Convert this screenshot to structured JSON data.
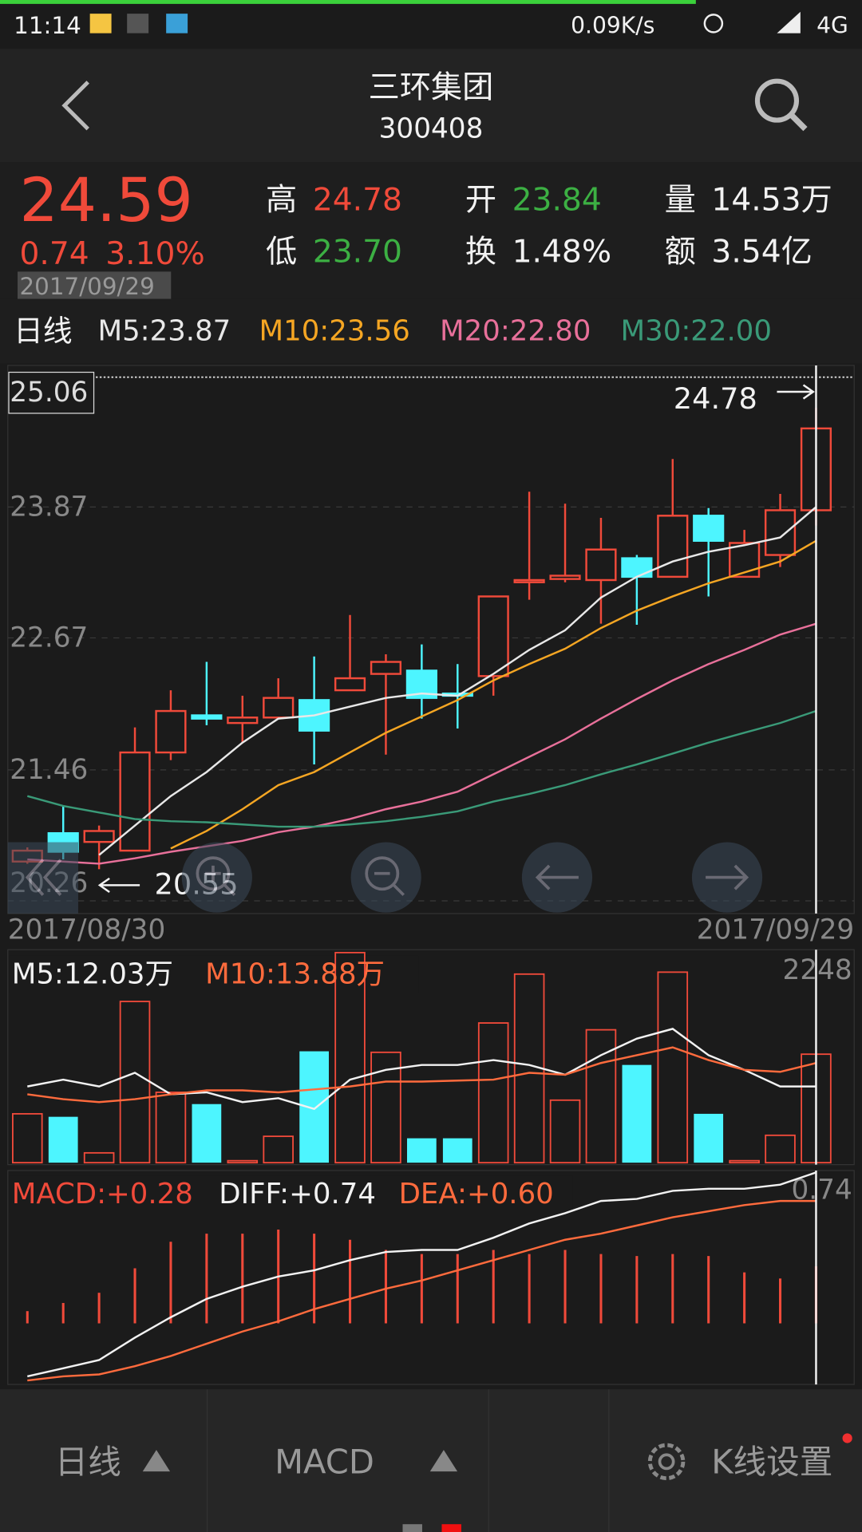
{
  "status_bar": {
    "time": "11:14",
    "speed": "0.09K/s",
    "network": "4G"
  },
  "header": {
    "title": "三环集团",
    "code": "300408"
  },
  "quote": {
    "price": "24.59",
    "change": "0.74",
    "change_pct": "3.10%",
    "date": "2017/09/29",
    "stats": [
      {
        "label": "高",
        "value": "24.78",
        "color": "#f04a3a"
      },
      {
        "label": "开",
        "value": "23.84",
        "color": "#3cb043"
      },
      {
        "label": "量",
        "value": "14.53万",
        "color": "#f2f2f2"
      },
      {
        "label": "低",
        "value": "23.70",
        "color": "#3cb043"
      },
      {
        "label": "换",
        "value": "1.48%",
        "color": "#f2f2f2"
      },
      {
        "label": "额",
        "value": "3.54亿",
        "color": "#f2f2f2"
      }
    ]
  },
  "chart_data": [
    {
      "type": "candlestick",
      "period": "日线",
      "categories": [
        "2017/08/30",
        null,
        null,
        null,
        null,
        null,
        null,
        null,
        null,
        null,
        null,
        null,
        null,
        null,
        null,
        null,
        null,
        null,
        null,
        null,
        null,
        null,
        "2017/09/29"
      ],
      "open": [
        20.62,
        20.88,
        20.8,
        20.72,
        21.62,
        21.96,
        21.89,
        21.94,
        22.1,
        22.19,
        22.34,
        22.37,
        22.16,
        22.32,
        23.18,
        23.21,
        23.2,
        23.4,
        23.23,
        23.79,
        23.23,
        23.43,
        23.84
      ],
      "high": [
        20.75,
        21.13,
        20.95,
        21.85,
        22.19,
        22.45,
        22.14,
        22.3,
        22.5,
        22.88,
        22.52,
        22.61,
        22.43,
        23.05,
        24.01,
        23.9,
        23.77,
        23.43,
        24.31,
        23.86,
        23.66,
        23.99,
        24.78
      ],
      "low": [
        20.6,
        20.64,
        20.55,
        20.72,
        21.55,
        21.87,
        21.71,
        21.94,
        21.51,
        22.19,
        21.6,
        21.93,
        21.84,
        22.14,
        23.02,
        23.18,
        22.8,
        22.79,
        23.23,
        23.05,
        23.23,
        23.32,
        23.7
      ],
      "close": [
        20.72,
        20.71,
        20.9,
        21.62,
        22.0,
        21.93,
        21.94,
        22.12,
        21.82,
        22.3,
        22.45,
        22.12,
        22.14,
        23.05,
        23.2,
        23.24,
        23.48,
        23.23,
        23.79,
        23.56,
        23.54,
        23.84,
        24.59
      ],
      "up_color": "#f04a3a",
      "down_color": "#4df5ff",
      "ylim": [
        20.26,
        25.06
      ],
      "yticks": [
        20.26,
        21.46,
        22.67,
        23.87,
        25.06
      ],
      "grid": true,
      "series": [
        {
          "name": "M5:23.87",
          "color": "#e8e8e8",
          "values": [
            null,
            null,
            20.68,
            20.95,
            21.22,
            21.44,
            21.71,
            21.93,
            21.96,
            22.04,
            22.12,
            22.16,
            22.14,
            22.34,
            22.56,
            22.74,
            23.04,
            23.23,
            23.37,
            23.46,
            23.52,
            23.59,
            23.87
          ]
        },
        {
          "name": "M10:23.56",
          "color": "#f5a623",
          "values": [
            null,
            null,
            null,
            null,
            20.74,
            20.9,
            21.1,
            21.32,
            21.44,
            21.62,
            21.8,
            21.95,
            22.1,
            22.28,
            22.43,
            22.57,
            22.76,
            22.92,
            23.05,
            23.17,
            23.27,
            23.37,
            23.56
          ]
        },
        {
          "name": "M20:22.80",
          "color": "#e8709a",
          "values": [
            20.64,
            20.62,
            20.6,
            20.65,
            20.71,
            20.76,
            20.81,
            20.89,
            20.94,
            21.01,
            21.1,
            21.17,
            21.26,
            21.42,
            21.58,
            21.74,
            21.93,
            22.11,
            22.28,
            22.43,
            22.56,
            22.7,
            22.8
          ]
        },
        {
          "name": "M30:22.00",
          "color": "#3a9a78",
          "values": [
            21.22,
            21.13,
            21.07,
            21.01,
            20.99,
            20.98,
            20.96,
            20.94,
            20.94,
            20.96,
            20.99,
            21.03,
            21.08,
            21.17,
            21.24,
            21.32,
            21.42,
            21.51,
            21.61,
            21.71,
            21.8,
            21.89,
            22.0
          ]
        }
      ]
    },
    {
      "type": "bar",
      "values": [
        523,
        491,
        105,
        1725,
        753,
        627,
        21,
        282,
        1192,
        2248,
        1181,
        261,
        261,
        1495,
        2018,
        669,
        1422,
        1046,
        2039,
        523,
        21,
        293,
        1161
      ],
      "ylim": [
        0,
        2248
      ],
      "yticks": [
        2248
      ],
      "grid": false,
      "series": [
        {
          "name": "M5:12.03万",
          "color": "#f2f2f2",
          "values": [
            816,
            889,
            816,
            962,
            732,
            753,
            648,
            690,
            575,
            889,
            993,
            1046,
            1046,
            1098,
            1046,
            941,
            1150,
            1328,
            1432,
            1150,
            993,
            816,
            816
          ]
        },
        {
          "name": "M10:13.88万",
          "color": "#ff6b3d",
          "values": [
            732,
            680,
            648,
            680,
            732,
            774,
            774,
            753,
            784,
            816,
            868,
            868,
            878,
            889,
            962,
            941,
            1067,
            1150,
            1234,
            1098,
            993,
            972,
            1067
          ]
        }
      ]
    },
    {
      "type": "bar",
      "bars": {
        "name": "MACD:+0.28",
        "color": "#f04a3a",
        "values": [
          0.06,
          0.1,
          0.15,
          0.27,
          0.4,
          0.44,
          0.44,
          0.46,
          0.44,
          0.41,
          0.36,
          0.34,
          0.34,
          0.36,
          0.34,
          0.36,
          0.34,
          0.33,
          0.34,
          0.33,
          0.25,
          0.22,
          0.28
        ]
      },
      "ylim": [
        -0.29,
        0.74
      ],
      "yticks": [
        0.74
      ],
      "grid": false,
      "series": [
        {
          "name": "DIFF:+0.74",
          "color": "#f2f2f2",
          "values": [
            -0.26,
            -0.22,
            -0.18,
            -0.07,
            0.03,
            0.12,
            0.18,
            0.23,
            0.26,
            0.31,
            0.35,
            0.36,
            0.36,
            0.42,
            0.49,
            0.54,
            0.6,
            0.61,
            0.65,
            0.66,
            0.66,
            0.68,
            0.74
          ]
        },
        {
          "name": "DEA:+0.60",
          "color": "#ff6b3d",
          "values": [
            -0.28,
            -0.26,
            -0.25,
            -0.21,
            -0.16,
            -0.1,
            -0.04,
            0.01,
            0.07,
            0.12,
            0.17,
            0.21,
            0.26,
            0.31,
            0.36,
            0.41,
            0.44,
            0.48,
            0.52,
            0.55,
            0.58,
            0.6,
            0.6
          ]
        }
      ]
    }
  ],
  "bottom_bar": {
    "period": "日线",
    "indicator": "MACD",
    "settings": "K线设置"
  }
}
